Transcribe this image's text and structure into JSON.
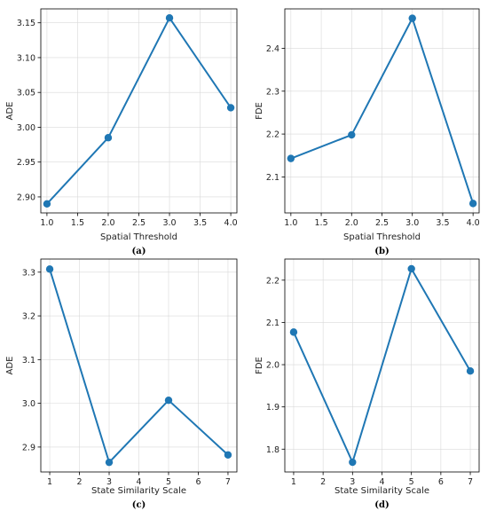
{
  "colors": {
    "series": "#1f77b4"
  },
  "chart_data": [
    {
      "type": "line",
      "x": [
        1.0,
        2.0,
        3.0,
        4.0
      ],
      "series": [
        {
          "values": [
            2.89,
            2.985,
            3.157,
            3.028
          ]
        }
      ],
      "xlabel": "Spatial Threshold",
      "ylabel": "ADE",
      "caption": "(a)",
      "xlim": [
        0.9,
        4.1
      ],
      "ylim": [
        2.877,
        3.17
      ],
      "xticks": [
        1.0,
        1.5,
        2.0,
        2.5,
        3.0,
        3.5,
        4.0
      ],
      "xtick_labels": [
        "1.0",
        "1.5",
        "2.0",
        "2.5",
        "3.0",
        "3.5",
        "4.0"
      ],
      "yticks": [
        2.9,
        2.95,
        3.0,
        3.05,
        3.1,
        3.15
      ],
      "ytick_labels": [
        "2.90",
        "2.95",
        "3.00",
        "3.05",
        "3.10",
        "3.15"
      ],
      "grid": true
    },
    {
      "type": "line",
      "x": [
        1.0,
        2.0,
        3.0,
        4.0
      ],
      "series": [
        {
          "values": [
            2.143,
            2.198,
            2.47,
            2.038
          ]
        }
      ],
      "xlabel": "Spatial Threshold",
      "ylabel": "FDE",
      "caption": "(b)",
      "xlim": [
        0.9,
        4.1
      ],
      "ylim": [
        2.016,
        2.492
      ],
      "xticks": [
        1.0,
        1.5,
        2.0,
        2.5,
        3.0,
        3.5,
        4.0
      ],
      "xtick_labels": [
        "1.0",
        "1.5",
        "2.0",
        "2.5",
        "3.0",
        "3.5",
        "4.0"
      ],
      "yticks": [
        2.1,
        2.2,
        2.3,
        2.4
      ],
      "ytick_labels": [
        "2.1",
        "2.2",
        "2.3",
        "2.4"
      ],
      "grid": true
    },
    {
      "type": "line",
      "x": [
        1,
        3,
        5,
        7
      ],
      "series": [
        {
          "values": [
            3.307,
            2.865,
            3.007,
            2.882
          ]
        }
      ],
      "xlabel": "State Similarity Scale",
      "ylabel": "ADE",
      "caption": "(c)",
      "xlim": [
        0.7,
        7.3
      ],
      "ylim": [
        2.843,
        3.33
      ],
      "xticks": [
        1,
        2,
        3,
        4,
        5,
        6,
        7
      ],
      "xtick_labels": [
        "1",
        "2",
        "3",
        "4",
        "5",
        "6",
        "7"
      ],
      "yticks": [
        2.9,
        3.0,
        3.1,
        3.2,
        3.3
      ],
      "ytick_labels": [
        "2.9",
        "3.0",
        "3.1",
        "3.2",
        "3.3"
      ],
      "grid": true
    },
    {
      "type": "line",
      "x": [
        1,
        3,
        5,
        7
      ],
      "series": [
        {
          "values": [
            2.077,
            1.769,
            2.227,
            1.985
          ]
        }
      ],
      "xlabel": "State Similarity Scale",
      "ylabel": "FDE",
      "caption": "(d)",
      "xlim": [
        0.7,
        7.3
      ],
      "ylim": [
        1.746,
        2.25
      ],
      "xticks": [
        1,
        2,
        3,
        4,
        5,
        6,
        7
      ],
      "xtick_labels": [
        "1",
        "2",
        "3",
        "4",
        "5",
        "6",
        "7"
      ],
      "yticks": [
        1.8,
        1.9,
        2.0,
        2.1,
        2.2
      ],
      "ytick_labels": [
        "1.8",
        "1.9",
        "2.0",
        "2.1",
        "2.2"
      ],
      "grid": true
    }
  ]
}
